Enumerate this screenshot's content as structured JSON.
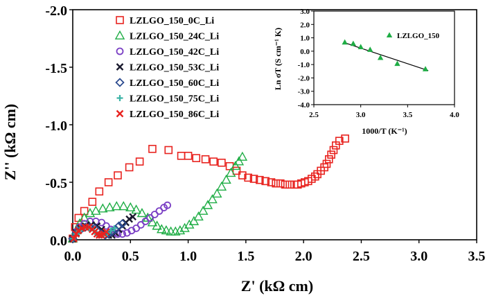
{
  "chart_data": [
    {
      "type": "scatter",
      "xlabel": "Z' (kΩ cm)",
      "ylabel": "Z'' (kΩ cm)",
      "xlim": [
        0,
        3.5
      ],
      "ylim": [
        0,
        -2.0
      ],
      "x_ticks": [
        "0.0",
        "0.5",
        "1.0",
        "1.5",
        "2.0",
        "2.5",
        "3.0",
        "3.5"
      ],
      "y_ticks": [
        "0.0",
        "-0.5",
        "-1.0",
        "-1.5",
        "-2.0"
      ],
      "legend_position": "top-left",
      "series": [
        {
          "name": "LZLGO_150_0C_Li",
          "marker": "square",
          "color": "#e8231f",
          "points": [
            [
              0.0,
              -0.01
            ],
            [
              0.02,
              -0.11
            ],
            [
              0.05,
              -0.19
            ],
            [
              0.1,
              -0.25
            ],
            [
              0.17,
              -0.33
            ],
            [
              0.23,
              -0.42
            ],
            [
              0.31,
              -0.5
            ],
            [
              0.39,
              -0.56
            ],
            [
              0.49,
              -0.63
            ],
            [
              0.58,
              -0.68
            ],
            [
              0.69,
              -0.79
            ],
            [
              0.83,
              -0.78
            ],
            [
              0.94,
              -0.73
            ],
            [
              1.0,
              -0.73
            ],
            [
              1.07,
              -0.71
            ],
            [
              1.15,
              -0.7
            ],
            [
              1.22,
              -0.68
            ],
            [
              1.29,
              -0.67
            ],
            [
              1.36,
              -0.64
            ],
            [
              1.42,
              -0.6
            ],
            [
              1.47,
              -0.56
            ],
            [
              1.52,
              -0.54
            ],
            [
              1.57,
              -0.53
            ],
            [
              1.62,
              -0.52
            ],
            [
              1.67,
              -0.51
            ],
            [
              1.72,
              -0.5
            ],
            [
              1.76,
              -0.49
            ],
            [
              1.8,
              -0.49
            ],
            [
              1.84,
              -0.48
            ],
            [
              1.88,
              -0.48
            ],
            [
              1.92,
              -0.48
            ],
            [
              1.95,
              -0.48
            ],
            [
              1.98,
              -0.49
            ],
            [
              2.01,
              -0.5
            ],
            [
              2.04,
              -0.51
            ],
            [
              2.07,
              -0.53
            ],
            [
              2.1,
              -0.55
            ],
            [
              2.12,
              -0.57
            ],
            [
              2.15,
              -0.6
            ],
            [
              2.18,
              -0.63
            ],
            [
              2.2,
              -0.66
            ],
            [
              2.22,
              -0.7
            ],
            [
              2.24,
              -0.74
            ],
            [
              2.26,
              -0.78
            ],
            [
              2.28,
              -0.82
            ],
            [
              2.31,
              -0.86
            ],
            [
              2.36,
              -0.88
            ]
          ]
        },
        {
          "name": "LZLGO_150_24C_Li",
          "marker": "triangle",
          "color": "#1fad45",
          "points": [
            [
              0.0,
              -0.01
            ],
            [
              0.03,
              -0.08
            ],
            [
              0.06,
              -0.14
            ],
            [
              0.1,
              -0.19
            ],
            [
              0.15,
              -0.23
            ],
            [
              0.2,
              -0.25
            ],
            [
              0.26,
              -0.27
            ],
            [
              0.32,
              -0.28
            ],
            [
              0.38,
              -0.29
            ],
            [
              0.44,
              -0.29
            ],
            [
              0.5,
              -0.28
            ],
            [
              0.55,
              -0.26
            ],
            [
              0.6,
              -0.23
            ],
            [
              0.65,
              -0.19
            ],
            [
              0.69,
              -0.15
            ],
            [
              0.73,
              -0.12
            ],
            [
              0.77,
              -0.09
            ],
            [
              0.81,
              -0.08
            ],
            [
              0.85,
              -0.07
            ],
            [
              0.89,
              -0.07
            ],
            [
              0.93,
              -0.08
            ],
            [
              0.97,
              -0.1
            ],
            [
              1.01,
              -0.13
            ],
            [
              1.05,
              -0.16
            ],
            [
              1.09,
              -0.2
            ],
            [
              1.13,
              -0.25
            ],
            [
              1.17,
              -0.3
            ],
            [
              1.21,
              -0.35
            ],
            [
              1.25,
              -0.4
            ],
            [
              1.29,
              -0.46
            ],
            [
              1.33,
              -0.52
            ],
            [
              1.37,
              -0.58
            ],
            [
              1.41,
              -0.64
            ],
            [
              1.44,
              -0.68
            ],
            [
              1.47,
              -0.72
            ]
          ]
        },
        {
          "name": "LZLGO_150_42C_Li",
          "marker": "circle",
          "color": "#7a3fc4",
          "points": [
            [
              0.0,
              -0.01
            ],
            [
              0.03,
              -0.07
            ],
            [
              0.06,
              -0.11
            ],
            [
              0.1,
              -0.14
            ],
            [
              0.15,
              -0.16
            ],
            [
              0.2,
              -0.16
            ],
            [
              0.25,
              -0.15
            ],
            [
              0.29,
              -0.12
            ],
            [
              0.33,
              -0.09
            ],
            [
              0.36,
              -0.06
            ],
            [
              0.39,
              -0.05
            ],
            [
              0.43,
              -0.05
            ],
            [
              0.47,
              -0.06
            ],
            [
              0.51,
              -0.08
            ],
            [
              0.55,
              -0.1
            ],
            [
              0.59,
              -0.13
            ],
            [
              0.63,
              -0.16
            ],
            [
              0.67,
              -0.19
            ],
            [
              0.71,
              -0.22
            ],
            [
              0.75,
              -0.25
            ],
            [
              0.79,
              -0.28
            ],
            [
              0.82,
              -0.3
            ]
          ]
        },
        {
          "name": "LZLGO_150_53C_Li",
          "marker": "x",
          "color": "#1a1a2e",
          "points": [
            [
              0.0,
              -0.01
            ],
            [
              0.03,
              -0.06
            ],
            [
              0.07,
              -0.1
            ],
            [
              0.11,
              -0.12
            ],
            [
              0.16,
              -0.13
            ],
            [
              0.21,
              -0.12
            ],
            [
              0.25,
              -0.09
            ],
            [
              0.28,
              -0.06
            ],
            [
              0.31,
              -0.04
            ],
            [
              0.34,
              -0.04
            ],
            [
              0.37,
              -0.06
            ],
            [
              0.4,
              -0.09
            ],
            [
              0.43,
              -0.12
            ],
            [
              0.46,
              -0.15
            ],
            [
              0.49,
              -0.18
            ],
            [
              0.52,
              -0.2
            ]
          ]
        },
        {
          "name": "LZLGO_150_60C_Li",
          "marker": "diamond",
          "color": "#2c4b8f",
          "points": [
            [
              0.0,
              -0.01
            ],
            [
              0.03,
              -0.06
            ],
            [
              0.07,
              -0.09
            ],
            [
              0.11,
              -0.11
            ],
            [
              0.15,
              -0.11
            ],
            [
              0.19,
              -0.1
            ],
            [
              0.22,
              -0.07
            ],
            [
              0.25,
              -0.05
            ],
            [
              0.28,
              -0.04
            ],
            [
              0.31,
              -0.05
            ],
            [
              0.34,
              -0.07
            ],
            [
              0.37,
              -0.09
            ],
            [
              0.4,
              -0.12
            ],
            [
              0.43,
              -0.14
            ]
          ]
        },
        {
          "name": "LZLGO_150_75C_Li",
          "marker": "plus",
          "color": "#3cb3a6",
          "points": [
            [
              0.0,
              -0.01
            ],
            [
              0.03,
              -0.05
            ],
            [
              0.06,
              -0.08
            ],
            [
              0.1,
              -0.1
            ],
            [
              0.14,
              -0.1
            ],
            [
              0.18,
              -0.08
            ],
            [
              0.21,
              -0.05
            ],
            [
              0.24,
              -0.04
            ],
            [
              0.27,
              -0.04
            ],
            [
              0.3,
              -0.06
            ],
            [
              0.33,
              -0.08
            ],
            [
              0.36,
              -0.1
            ]
          ]
        },
        {
          "name": "LZLGO_150_86C_Li",
          "marker": "x",
          "color": "#e8231f",
          "points": [
            [
              0.01,
              -0.01
            ],
            [
              0.03,
              -0.05
            ],
            [
              0.05,
              -0.08
            ],
            [
              0.08,
              -0.1
            ],
            [
              0.11,
              -0.11
            ],
            [
              0.14,
              -0.11
            ],
            [
              0.17,
              -0.09
            ],
            [
              0.19,
              -0.07
            ],
            [
              0.21,
              -0.05
            ],
            [
              0.23,
              -0.04
            ],
            [
              0.25,
              -0.04
            ],
            [
              0.27,
              -0.05
            ],
            [
              0.29,
              -0.07
            ]
          ]
        }
      ]
    },
    {
      "type": "scatter",
      "xlabel": "1000/T (K⁻¹)",
      "ylabel": "Ln σT (S cm⁻¹ K)",
      "xlim": [
        2.5,
        4.0
      ],
      "ylim": [
        -4.0,
        3.0
      ],
      "x_ticks": [
        "2.5",
        "3.0",
        "3.5",
        "4.0"
      ],
      "y_ticks": [
        "3.0",
        "2.0",
        "1.0",
        "0.0",
        "-1.0",
        "-2.0",
        "-3.0",
        "-4.0"
      ],
      "legend_position": "top-right",
      "series": [
        {
          "name": "LZLGO_150",
          "marker": "triangle",
          "color": "#1fad45",
          "points": [
            [
              2.83,
              0.65
            ],
            [
              2.92,
              0.55
            ],
            [
              3.0,
              0.3
            ],
            [
              3.1,
              0.1
            ],
            [
              3.21,
              -0.5
            ],
            [
              3.39,
              -0.95
            ],
            [
              3.69,
              -1.35
            ]
          ]
        }
      ],
      "fit_line": [
        [
          2.82,
          0.65
        ],
        [
          3.72,
          -1.45
        ]
      ]
    }
  ]
}
